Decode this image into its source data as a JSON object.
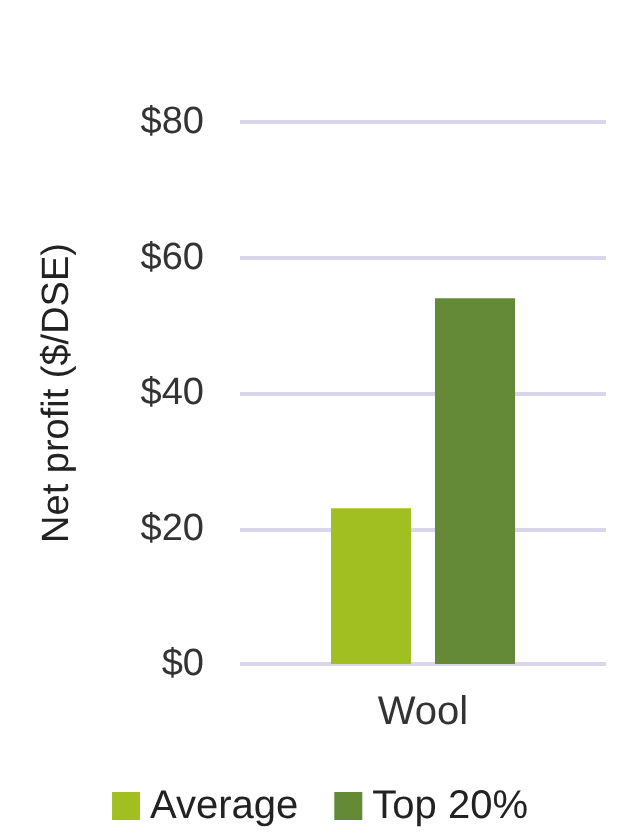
{
  "chart_data": {
    "type": "bar",
    "categories": [
      "Wool"
    ],
    "ylabel": "Net profit ($/DSE)",
    "series": [
      {
        "name": "Average",
        "color": "#a2bf22",
        "values": [
          23
        ]
      },
      {
        "name": "Top 20%",
        "color": "#648a37",
        "values": [
          54
        ]
      }
    ],
    "ylim": [
      0,
      80
    ],
    "yticks": [
      {
        "value": 0,
        "label": "$0"
      },
      {
        "value": 20,
        "label": "$20"
      },
      {
        "value": 40,
        "label": "$40"
      },
      {
        "value": 60,
        "label": "$60"
      },
      {
        "value": 80,
        "label": "$80"
      }
    ],
    "grid": "y",
    "legend": "bottom"
  }
}
